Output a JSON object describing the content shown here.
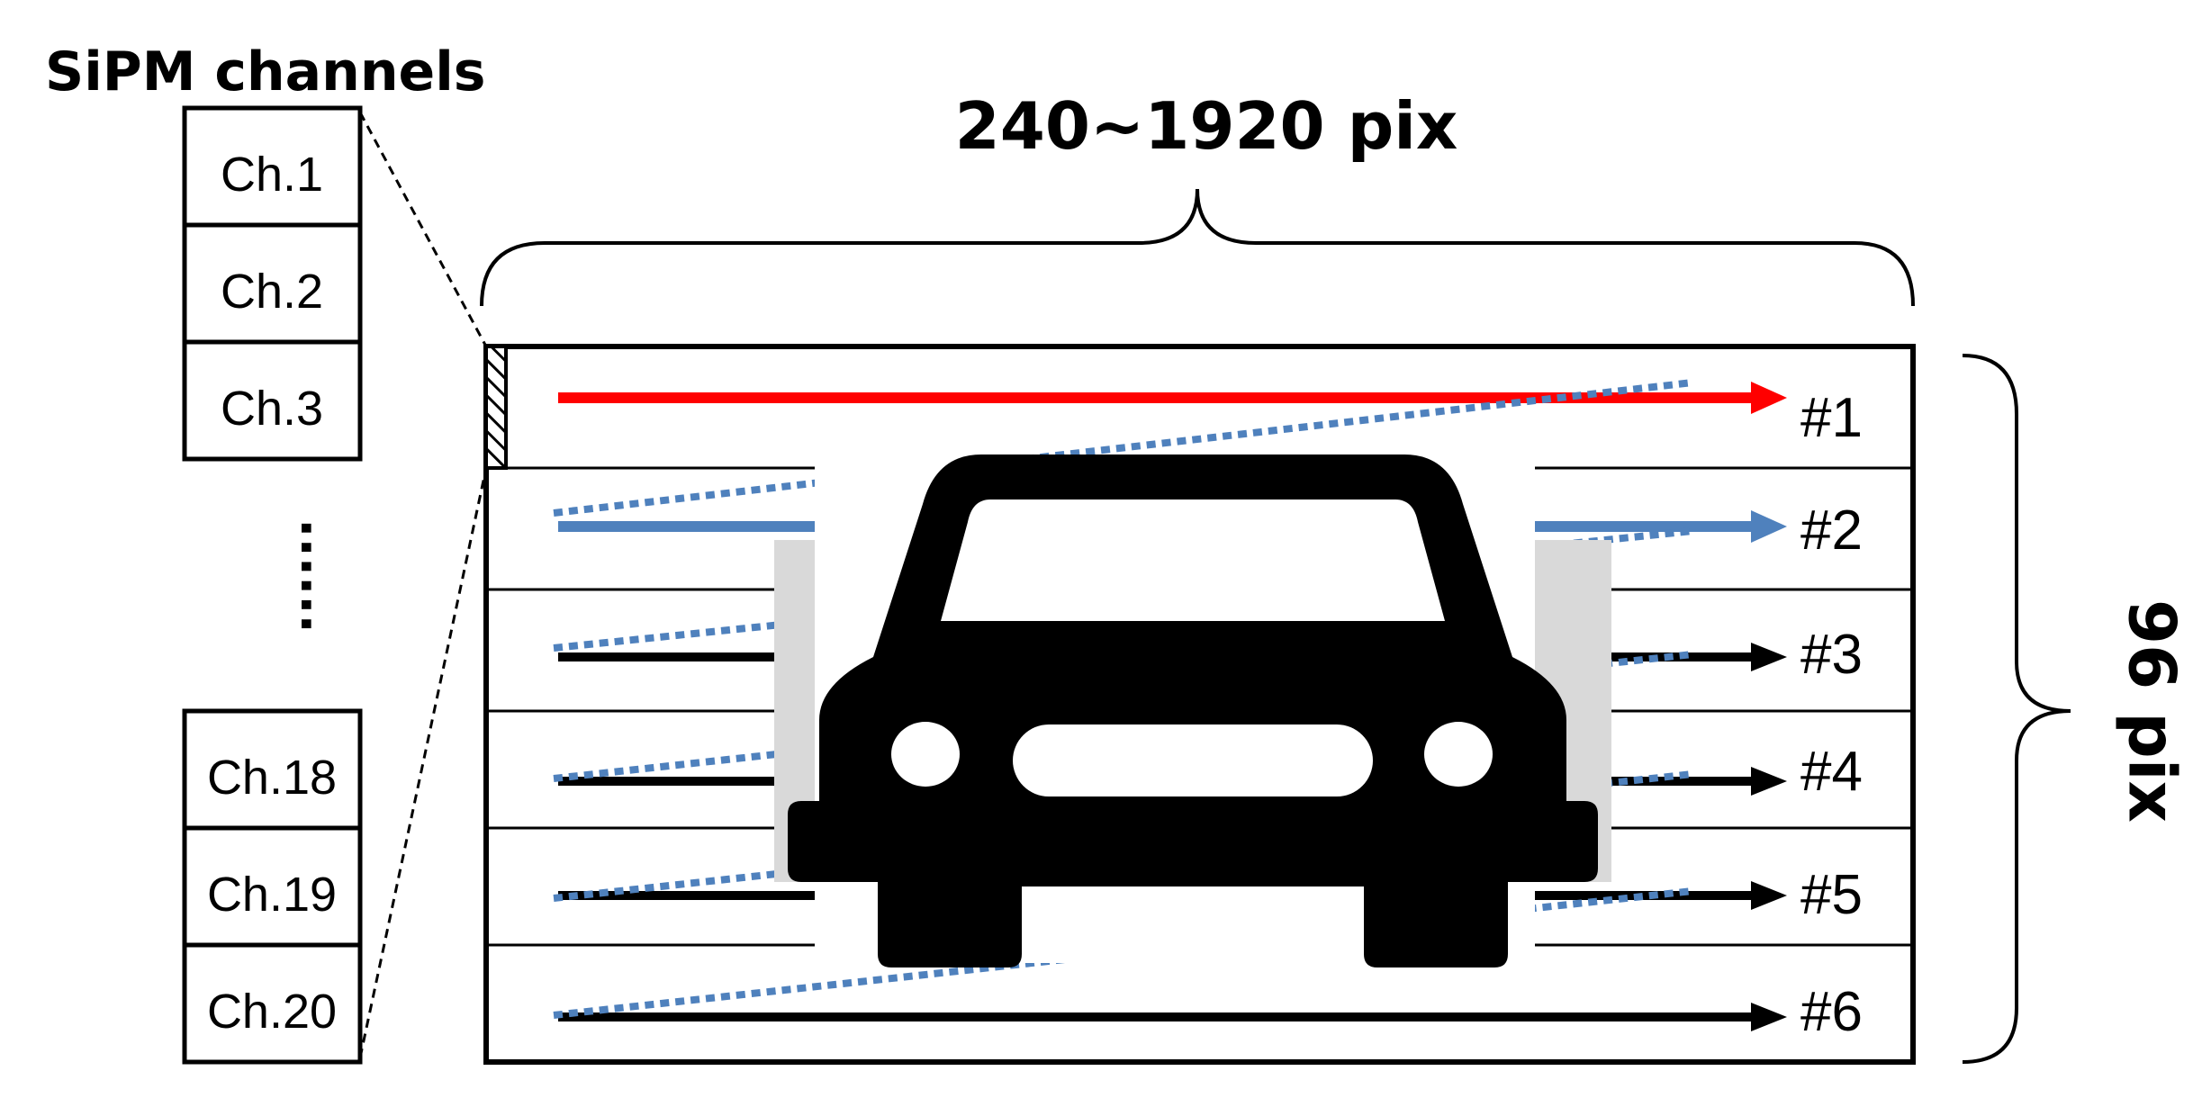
{
  "channels": {
    "title": "SiPM channels",
    "labels": [
      "Ch.1",
      "Ch.2",
      "Ch.3",
      "Ch.18",
      "Ch.19",
      "Ch.20"
    ],
    "ellipsis": "......"
  },
  "dimensions": {
    "width_label": "240~1920 pix",
    "height_label": "96 pix"
  },
  "scan_lines": {
    "labels": [
      "#1",
      "#2",
      "#3",
      "#4",
      "#5",
      "#6"
    ]
  },
  "colors": {
    "line_1": "#ff0000",
    "line_2": "#4f81bd",
    "other_lines": "#000000",
    "dotted_tilt": "#4f81bd",
    "occluder": "#d9d9d9",
    "car": "#000000"
  },
  "icons": [
    "car-icon",
    "arrow-icon",
    "curly-brace-icon"
  ]
}
